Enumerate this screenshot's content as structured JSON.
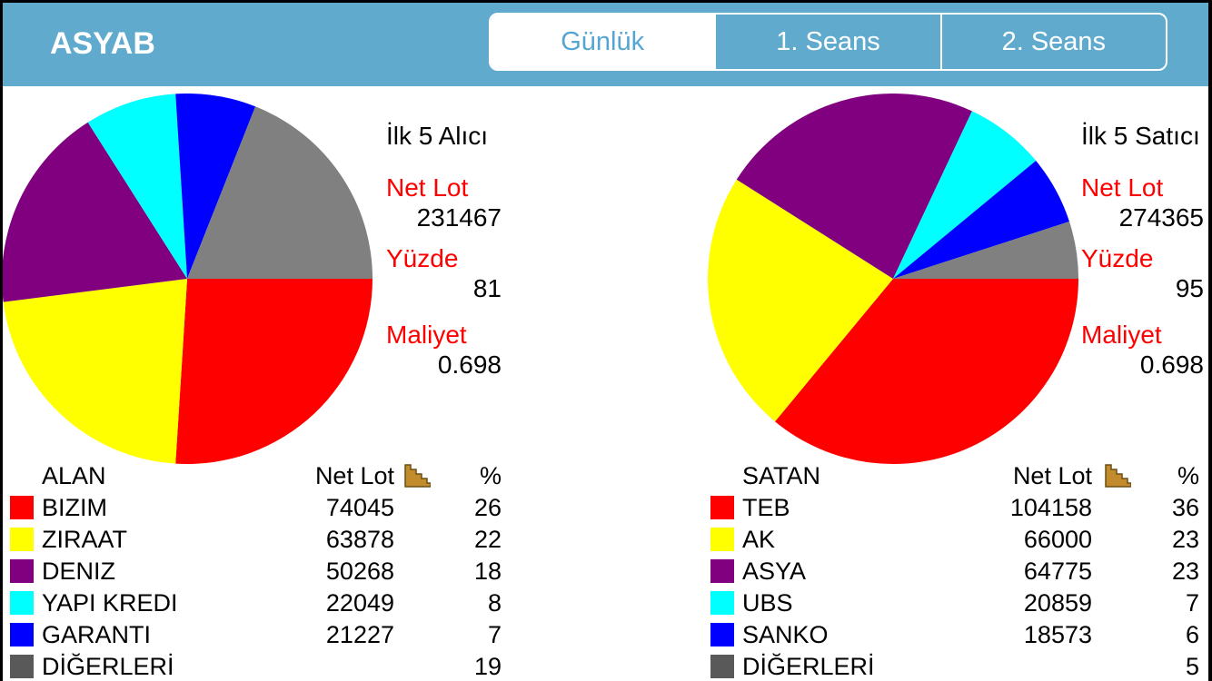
{
  "header": {
    "title": "ASYAB",
    "tabs": [
      {
        "label": "Günlük",
        "selected": true
      },
      {
        "label": "1. Seans",
        "selected": false
      },
      {
        "label": "2. Seans",
        "selected": false
      }
    ]
  },
  "panels": [
    {
      "id": "buyers",
      "summary": {
        "title": "İlk 5 Alıcı",
        "items": [
          {
            "label": "Net Lot",
            "value": "231467"
          },
          {
            "label": "Yüzde",
            "value": "81"
          },
          {
            "label": "Maliyet",
            "value": "0.698"
          }
        ]
      },
      "table": {
        "headers": {
          "name": "ALAN",
          "netlot": "Net Lot",
          "pct": "%"
        },
        "rows": [
          {
            "name": "BIZIM",
            "netlot": "74045",
            "pct": "26",
            "color": "#ff0000"
          },
          {
            "name": "ZIRAAT",
            "netlot": "63878",
            "pct": "22",
            "color": "#ffff00"
          },
          {
            "name": "DENIZ",
            "netlot": "50268",
            "pct": "18",
            "color": "#800080"
          },
          {
            "name": "YAPI KREDI",
            "netlot": "22049",
            "pct": "8",
            "color": "#00ffff"
          },
          {
            "name": "GARANTI",
            "netlot": "21227",
            "pct": "7",
            "color": "#0000ff"
          },
          {
            "name": "DİĞERLERİ",
            "netlot": "",
            "pct": "19",
            "color": "#595959"
          }
        ]
      }
    },
    {
      "id": "sellers",
      "summary": {
        "title": "İlk 5 Satıcı",
        "items": [
          {
            "label": "Net Lot",
            "value": "274365"
          },
          {
            "label": "Yüzde",
            "value": "95"
          },
          {
            "label": "Maliyet",
            "value": "0.698"
          }
        ]
      },
      "table": {
        "headers": {
          "name": "SATAN",
          "netlot": "Net Lot",
          "pct": "%"
        },
        "rows": [
          {
            "name": "TEB",
            "netlot": "104158",
            "pct": "36",
            "color": "#ff0000"
          },
          {
            "name": "AK",
            "netlot": "66000",
            "pct": "23",
            "color": "#ffff00"
          },
          {
            "name": "ASYA",
            "netlot": "64775",
            "pct": "23",
            "color": "#800080"
          },
          {
            "name": "UBS",
            "netlot": "20859",
            "pct": "7",
            "color": "#00ffff"
          },
          {
            "name": "SANKO",
            "netlot": "18573",
            "pct": "6",
            "color": "#0000ff"
          },
          {
            "name": "DİĞERLERİ",
            "netlot": "",
            "pct": "5",
            "color": "#595959"
          }
        ]
      }
    }
  ],
  "chart_data": [
    {
      "type": "pie",
      "title": "İlk 5 Alıcı",
      "labels": [
        "BIZIM",
        "ZIRAAT",
        "DENIZ",
        "YAPI KREDI",
        "GARANTI",
        "DİĞERLERİ"
      ],
      "values": [
        26,
        22,
        18,
        8,
        7,
        19
      ],
      "colors": [
        "#ff0000",
        "#ffff00",
        "#800080",
        "#00ffff",
        "#0000ff",
        "#808080"
      ],
      "start_angle_deg": 0,
      "direction": "clockwise",
      "legend_position": "table-below"
    },
    {
      "type": "pie",
      "title": "İlk 5 Satıcı",
      "labels": [
        "TEB",
        "AK",
        "ASYA",
        "UBS",
        "SANKO",
        "DİĞERLERİ"
      ],
      "values": [
        36,
        23,
        23,
        7,
        6,
        5
      ],
      "colors": [
        "#ff0000",
        "#ffff00",
        "#800080",
        "#00ffff",
        "#0000ff",
        "#808080"
      ],
      "start_angle_deg": 0,
      "direction": "clockwise",
      "legend_position": "table-below"
    }
  ],
  "colors": {
    "header_bg": "#60aacd",
    "selected_tab_text": "#55a5d2",
    "stat_label": "#ff0000",
    "sort_icon_fill": "#c28c2c",
    "sort_icon_edge": "#6b4f15"
  }
}
